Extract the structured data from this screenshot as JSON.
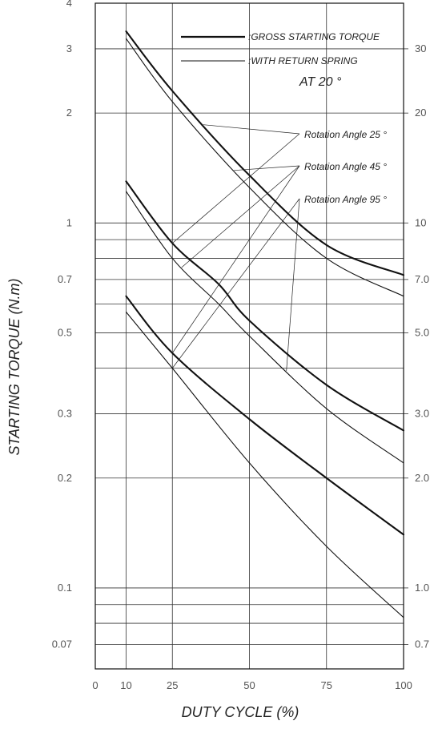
{
  "chart_data": {
    "type": "line",
    "xlabel": "DUTY CYCLE (%)",
    "ylabel": "STARTING TORQUE (N.m)",
    "x_scale": "linear",
    "y_scale": "log",
    "xlim": [
      0,
      100
    ],
    "ylim": [
      0.06,
      4
    ],
    "x_ticks": [
      "0",
      "10",
      "25",
      "50",
      "75",
      "100"
    ],
    "x_tick_values": [
      0,
      10,
      25,
      50,
      75,
      100
    ],
    "y_ticks_left": [
      "4",
      "3",
      "2",
      "1",
      "0.7",
      "0.5",
      "0.3",
      "0.2",
      "0.1",
      "0.07"
    ],
    "y_tick_values_left": [
      4,
      3,
      2,
      1,
      0.7,
      0.5,
      0.3,
      0.2,
      0.1,
      0.07
    ],
    "y_ticks_right": [
      "30",
      "20",
      "10",
      "7.0",
      "5.0",
      "3.0",
      "2.0",
      "1.0",
      "0.7"
    ],
    "y_tick_values_right": [
      3,
      2,
      1,
      0.7,
      0.5,
      0.3,
      0.2,
      0.1,
      0.07
    ],
    "grid": true,
    "legend_position": "top-right",
    "legend": {
      "gross_label": ":GROSS STARTING TORQUE",
      "spring_label": ":WITH RETURN SPRING",
      "temperature": "AT 20 °"
    },
    "annotations": [
      {
        "text": "Rotation Angle 25 °",
        "series": "gross_25"
      },
      {
        "text": "Rotation Angle 45 °",
        "series": "gross_45"
      },
      {
        "text": "Rotation Angle 95 °",
        "series": "gross_95"
      }
    ],
    "series": [
      {
        "id": "gross_25",
        "style": "thick",
        "x": [
          10,
          25,
          50,
          75,
          100
        ],
        "y": [
          3.35,
          2.3,
          1.35,
          0.87,
          0.72
        ]
      },
      {
        "id": "spring_25",
        "style": "thin",
        "x": [
          10,
          25,
          50,
          75,
          100
        ],
        "y": [
          3.2,
          2.15,
          1.25,
          0.8,
          0.63
        ]
      },
      {
        "id": "gross_45",
        "style": "thick",
        "x": [
          10,
          25,
          40,
          50,
          75,
          100
        ],
        "y": [
          1.3,
          0.88,
          0.68,
          0.54,
          0.36,
          0.27
        ]
      },
      {
        "id": "spring_45",
        "style": "thin",
        "x": [
          10,
          25,
          40,
          50,
          75,
          100
        ],
        "y": [
          1.22,
          0.8,
          0.6,
          0.49,
          0.31,
          0.22
        ]
      },
      {
        "id": "gross_95",
        "style": "thick",
        "x": [
          10,
          25,
          50,
          75,
          100
        ],
        "y": [
          0.63,
          0.44,
          0.29,
          0.2,
          0.14
        ]
      },
      {
        "id": "spring_95",
        "style": "thin",
        "x": [
          10,
          25,
          50,
          75,
          100
        ],
        "y": [
          0.57,
          0.4,
          0.22,
          0.13,
          0.083
        ]
      }
    ]
  }
}
